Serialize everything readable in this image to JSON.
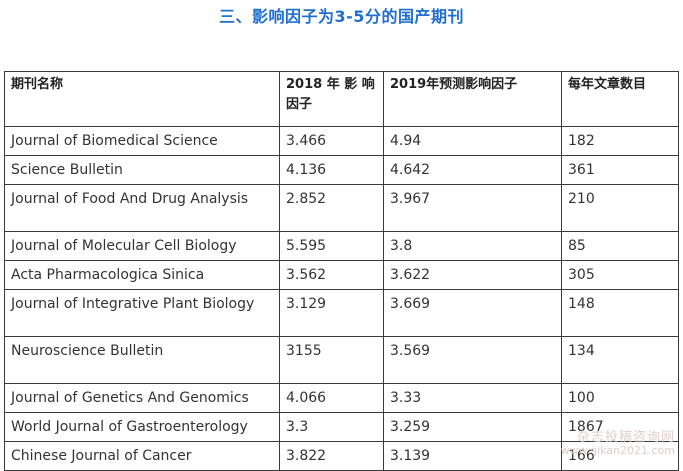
{
  "heading": "三、影响因子为3-5分的国产期刊",
  "table": {
    "headers": [
      "期刊名称",
      "2018 年 影 响 因子",
      "2019年预测影响因子",
      "每年文章数目"
    ],
    "rows": [
      [
        "Journal  of Biomedical Science",
        "3.466",
        "4.94",
        "182"
      ],
      [
        "Science  Bulletin",
        "4.136",
        "4.642",
        "361"
      ],
      [
        "Journal of Food And Drug Analysis",
        "2.852",
        "3.967",
        "210"
      ],
      [
        "Journal  of Molecular Cell Biology",
        "5.595",
        "3.8",
        "85"
      ],
      [
        "Acta  Pharmacologica Sinica",
        "3.562",
        "3.622",
        "305"
      ],
      [
        "Journal of Integrative Plant Biology",
        "3.129",
        "3.669",
        "148"
      ],
      [
        "Neuroscience Bulletin",
        "3155",
        "3.569",
        "134"
      ],
      [
        "Journal  of Genetics And Genomics",
        "4.066",
        "3.33",
        "100"
      ],
      [
        "World  Journal of Gastroenterology",
        "3.3",
        "3.259",
        "1867"
      ],
      [
        "Chinese  Journal of Cancer",
        "3.822",
        "3.139",
        "166"
      ]
    ]
  },
  "watermark": {
    "line1": "杂志投稿咨询网",
    "line2": "www.qikan2021.com"
  }
}
